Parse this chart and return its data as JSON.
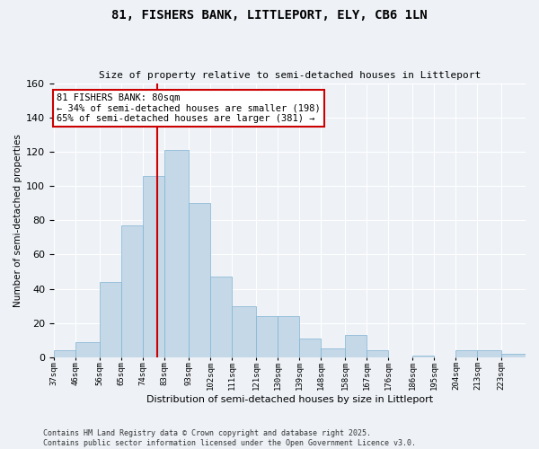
{
  "title1": "81, FISHERS BANK, LITTLEPORT, ELY, CB6 1LN",
  "title2": "Size of property relative to semi-detached houses in Littleport",
  "xlabel": "Distribution of semi-detached houses by size in Littleport",
  "ylabel": "Number of semi-detached properties",
  "annotation_line1": "81 FISHERS BANK: 80sqm",
  "annotation_line2": "← 34% of semi-detached houses are smaller (198)",
  "annotation_line3": "65% of semi-detached houses are larger (381) →",
  "footer1": "Contains HM Land Registry data © Crown copyright and database right 2025.",
  "footer2": "Contains public sector information licensed under the Open Government Licence v3.0.",
  "bin_edges": [
    37,
    46,
    56,
    65,
    74,
    83,
    93,
    102,
    111,
    121,
    130,
    139,
    148,
    158,
    167,
    176,
    186,
    195,
    204,
    213,
    223
  ],
  "counts": [
    4,
    9,
    44,
    77,
    106,
    121,
    90,
    47,
    30,
    24,
    24,
    11,
    5,
    13,
    4,
    0,
    1,
    0,
    4,
    4,
    2
  ],
  "bar_color": "#c5d8e8",
  "bar_edge_color": "#7fb3d3",
  "vline_color": "#cc0000",
  "vline_x": 80,
  "background_color": "#eef2f7",
  "grid_color": "#ffffff",
  "ylim": [
    0,
    160
  ],
  "tick_labels": [
    "37sqm",
    "46sqm",
    "56sqm",
    "65sqm",
    "74sqm",
    "83sqm",
    "93sqm",
    "102sqm",
    "111sqm",
    "121sqm",
    "130sqm",
    "139sqm",
    "148sqm",
    "158sqm",
    "167sqm",
    "176sqm",
    "186sqm",
    "195sqm",
    "204sqm",
    "213sqm",
    "223sqm"
  ]
}
